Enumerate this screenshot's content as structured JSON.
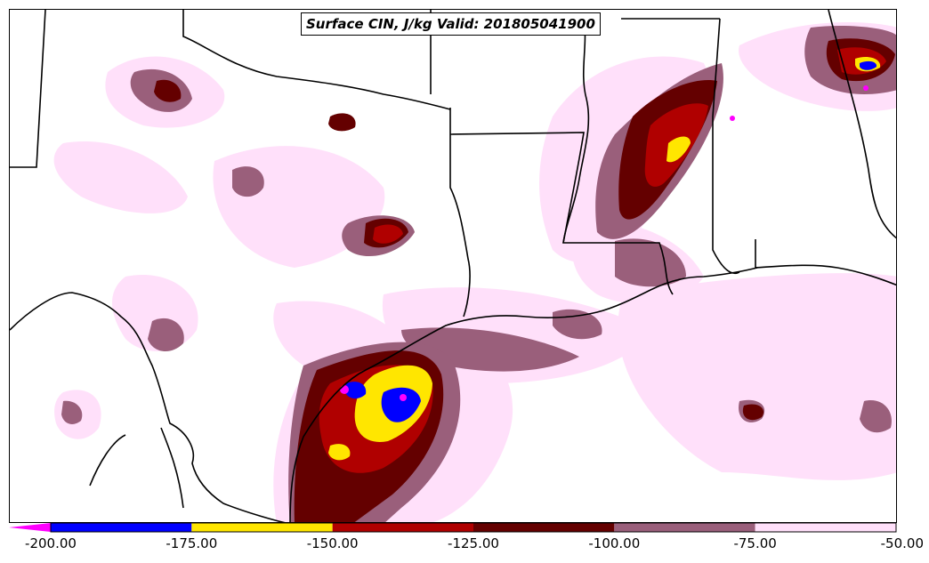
{
  "title": "Surface CIN, J/kg Valid: 201805041900",
  "colorbar": {
    "ticks": [
      "-200.00",
      "-175.00",
      "-150.00",
      "-125.00",
      "-100.00",
      "-75.00",
      "-50.00"
    ],
    "bins": [
      {
        "range": "-200 to -175",
        "color": "#0000ff"
      },
      {
        "range": "-175 to -150",
        "color": "#ffe600"
      },
      {
        "range": "-150 to -125",
        "color": "#b00000"
      },
      {
        "range": "-125 to -100",
        "color": "#640000"
      },
      {
        "range": "-100 to -75",
        "color": "#9a5f7b"
      },
      {
        "range": "-75 to -50",
        "color": "#ffe0fa"
      }
    ],
    "extend_color": "#ff00ff"
  },
  "colors": {
    "border": "#000000",
    "background": "#ffffff"
  }
}
